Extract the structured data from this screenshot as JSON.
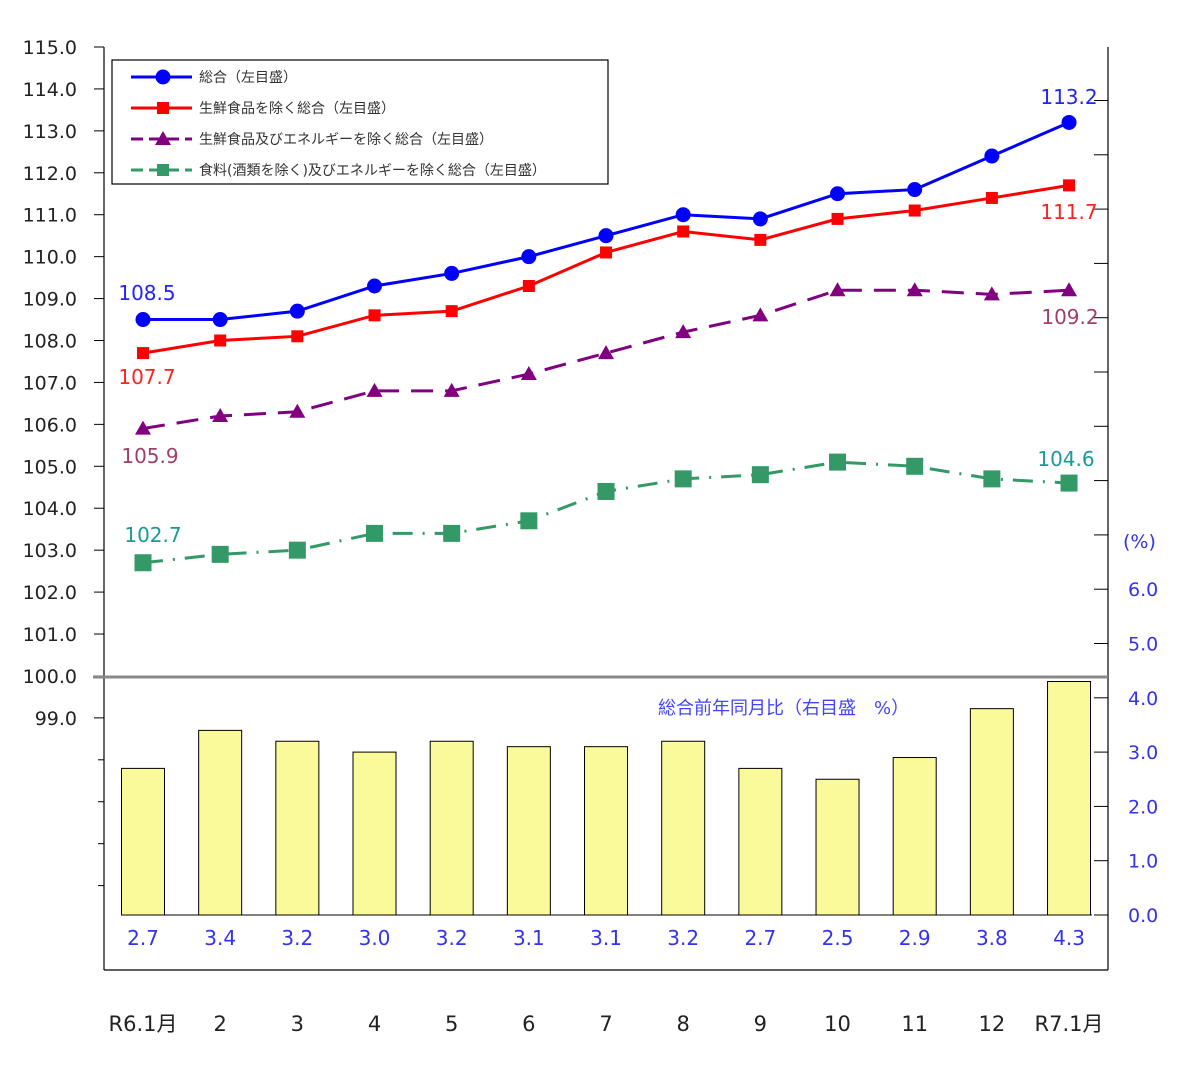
{
  "chart_data": {
    "type": "line+bar",
    "categories": [
      "R6.1月",
      "2",
      "3",
      "4",
      "5",
      "6",
      "7",
      "8",
      "9",
      "10",
      "11",
      "12",
      "R7.1月"
    ],
    "left_axis": {
      "ylim": [
        99.0,
        115.0
      ],
      "ticks": [
        "115.0",
        "114.0",
        "113.0",
        "112.0",
        "111.0",
        "110.0",
        "109.0",
        "108.0",
        "107.0",
        "106.0",
        "105.0",
        "104.0",
        "103.0",
        "102.0",
        "101.0",
        "100.0",
        "99.0"
      ],
      "baseline": 100.0
    },
    "right_axis": {
      "label": "(%)",
      "ylim": [
        0,
        6.0
      ],
      "ticks": [
        "6.0",
        "5.0",
        "4.0",
        "3.0",
        "2.0",
        "1.0",
        "0.0"
      ]
    },
    "series": [
      {
        "name": "総合（左目盛）",
        "type": "line",
        "marker": "circle",
        "dash": "solid",
        "color": "#0000ff",
        "values": [
          108.5,
          108.5,
          108.7,
          109.3,
          109.6,
          110.0,
          110.5,
          111.0,
          110.9,
          111.5,
          111.6,
          112.4,
          113.2
        ],
        "labels": {
          "first": "108.5",
          "last": "113.2"
        },
        "label_color": "#2222ff"
      },
      {
        "name": "生鮮食品を除く総合（左目盛）",
        "type": "line",
        "marker": "square",
        "dash": "solid",
        "color": "#ff0000",
        "values": [
          107.7,
          108.0,
          108.1,
          108.6,
          108.7,
          109.3,
          110.1,
          110.6,
          110.4,
          110.9,
          111.1,
          111.4,
          111.7
        ],
        "labels": {
          "first": "107.7",
          "last": "111.7"
        },
        "label_color": "#ff2222"
      },
      {
        "name": "生鮮食品及びエネルギーを除く総合（左目盛）",
        "type": "line",
        "marker": "triangle",
        "dash": "dashed",
        "color": "#800080",
        "values": [
          105.9,
          106.2,
          106.3,
          106.8,
          106.8,
          107.2,
          107.7,
          108.2,
          108.6,
          109.2,
          109.2,
          109.1,
          109.2
        ],
        "labels": {
          "first": "105.9",
          "last": "109.2"
        },
        "label_color": "#a0406a"
      },
      {
        "name": "食料(酒類を除く)及びエネルギーを除く総合（左目盛）",
        "type": "line",
        "marker": "square-large",
        "dash": "dashdot",
        "color": "#339966",
        "values": [
          102.7,
          102.9,
          103.0,
          103.4,
          103.4,
          103.7,
          104.4,
          104.7,
          104.8,
          105.1,
          105.0,
          104.7,
          104.6
        ],
        "labels": {
          "first": "102.7",
          "last": "104.6"
        },
        "label_color": "#1a9999"
      },
      {
        "name": "総合前年同月比（右目盛　%）",
        "type": "bar",
        "axis": "right",
        "color": "#fafa9a",
        "values": [
          2.7,
          3.4,
          3.2,
          3.0,
          3.2,
          3.1,
          3.1,
          3.2,
          2.7,
          2.5,
          2.9,
          3.8,
          4.3
        ],
        "labels": [
          "2.7",
          "3.4",
          "3.2",
          "3.0",
          "3.2",
          "3.1",
          "3.1",
          "3.2",
          "2.7",
          "2.5",
          "2.9",
          "3.8",
          "4.3"
        ]
      }
    ],
    "legend": {
      "placement": "top-left"
    },
    "grid": false
  }
}
